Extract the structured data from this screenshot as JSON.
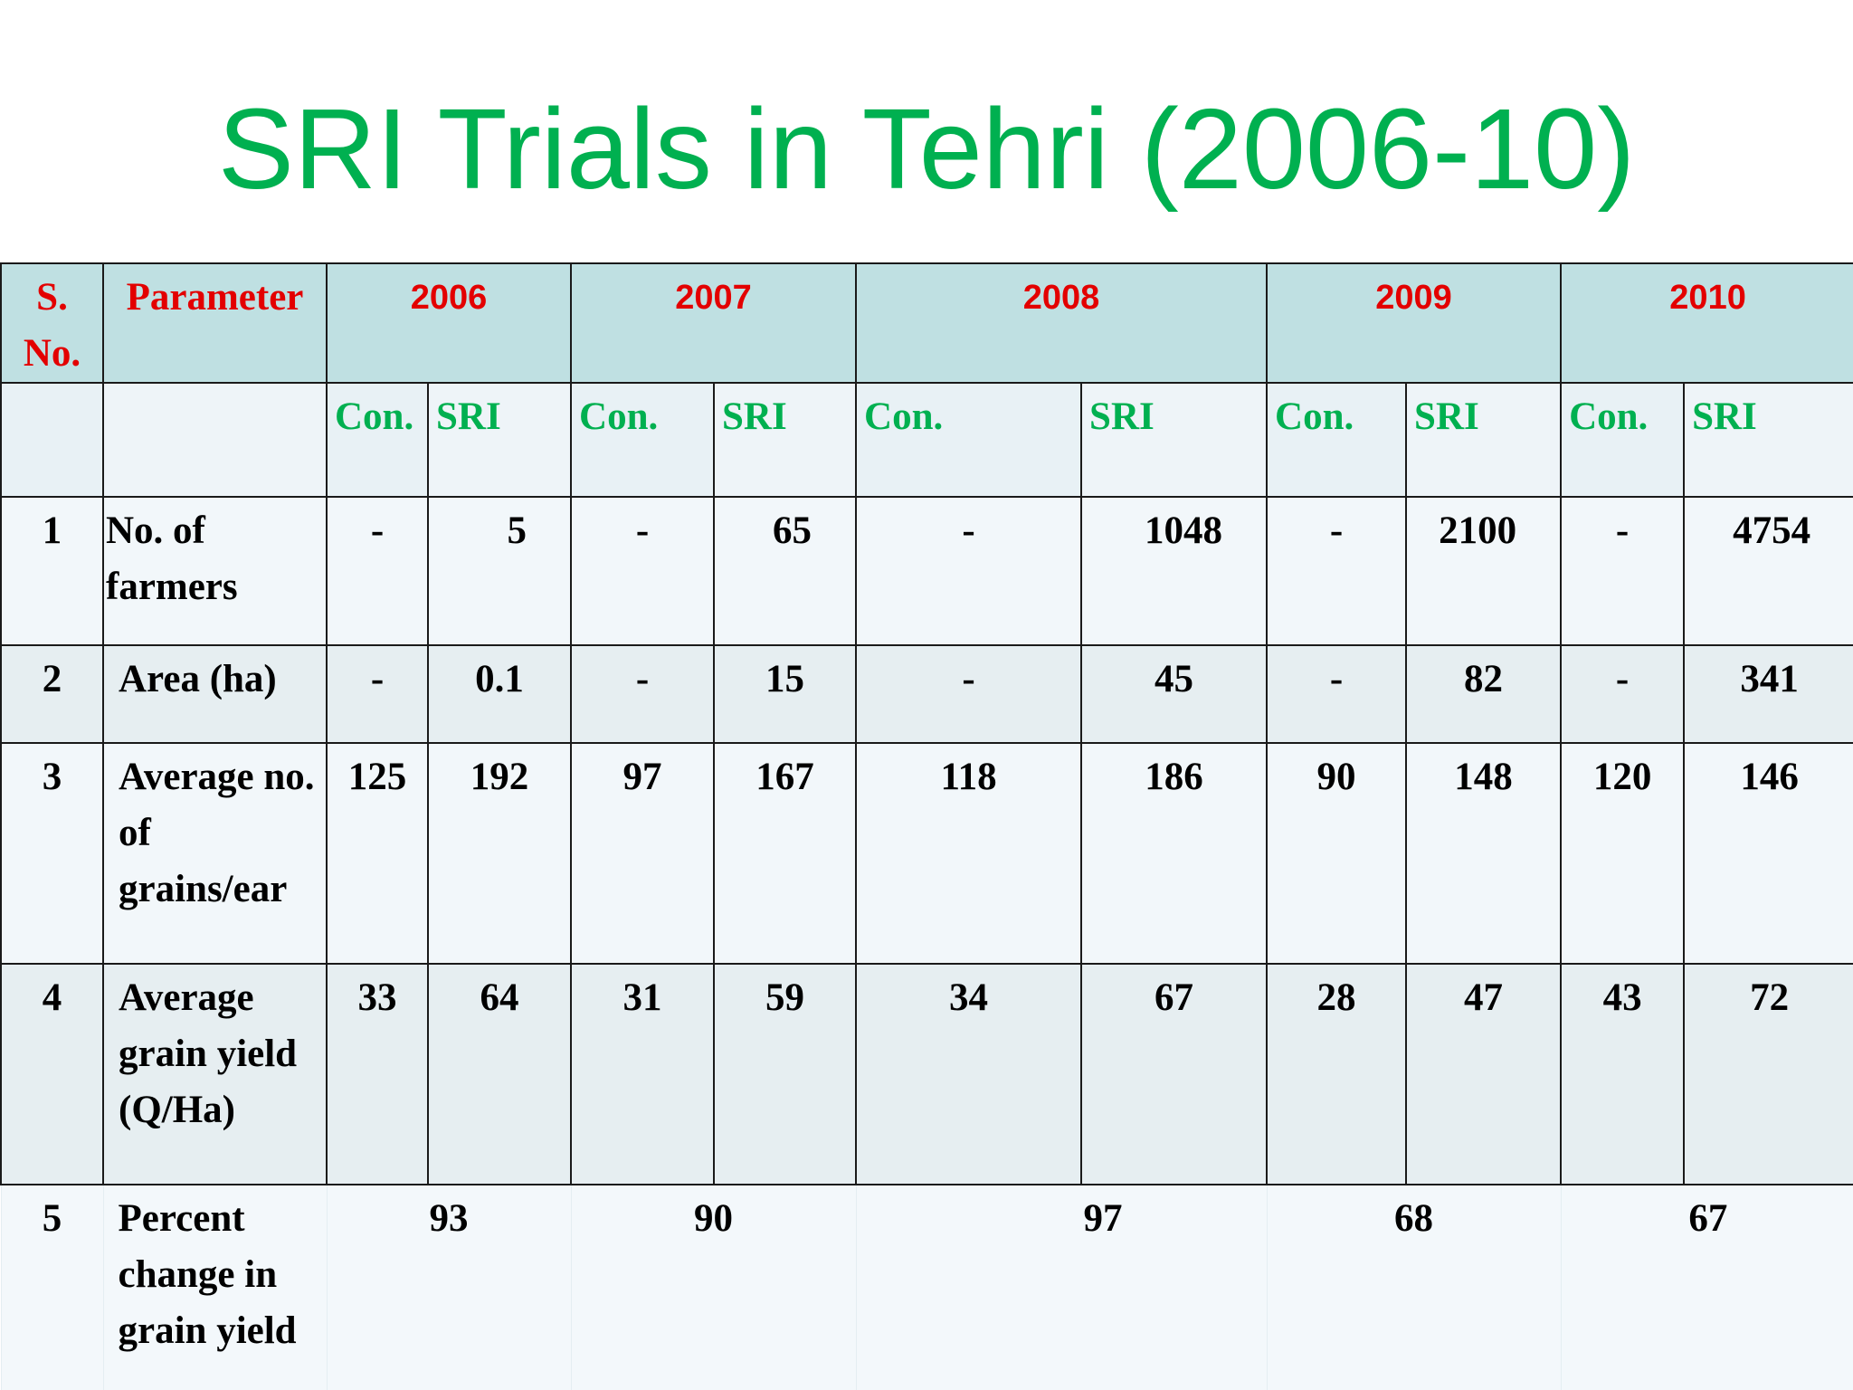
{
  "title": "SRI Trials in Tehri (2006-10)",
  "header": {
    "sno": "S. No.",
    "parameter": "Parameter",
    "years": [
      "2006",
      "2007",
      "2008",
      "2009",
      "2010"
    ],
    "sub": [
      "Con.",
      "SRI",
      "Con.",
      "SRI",
      "Con.",
      "SRI",
      "Con.",
      "SRI",
      "Con.",
      "SRI"
    ]
  },
  "rows": [
    {
      "sno": "1",
      "parameter": "No. of farmers",
      "values": [
        "-",
        "5",
        "-",
        "65",
        "-",
        "1048",
        "-",
        "2100",
        "-",
        "4754"
      ]
    },
    {
      "sno": "2",
      "parameter": "Area (ha)",
      "values": [
        "-",
        "0.1",
        "-",
        "15",
        "-",
        "45",
        "-",
        "82",
        "-",
        "341"
      ]
    },
    {
      "sno": "3",
      "parameter": "Average no. of grains/ear",
      "values": [
        "125",
        "192",
        "97",
        "167",
        "118",
        "186",
        "90",
        "148",
        "120",
        "146"
      ]
    },
    {
      "sno": "4",
      "parameter": "Average grain yield (Q/Ha)",
      "values": [
        "33",
        "64",
        "31",
        "59",
        "34",
        "67",
        "28",
        "47",
        "43",
        "72"
      ]
    }
  ],
  "percent_row": {
    "sno": "5",
    "parameter": "Percent change in grain yield",
    "values": [
      "93",
      "90",
      "97",
      "68",
      "67"
    ]
  }
}
